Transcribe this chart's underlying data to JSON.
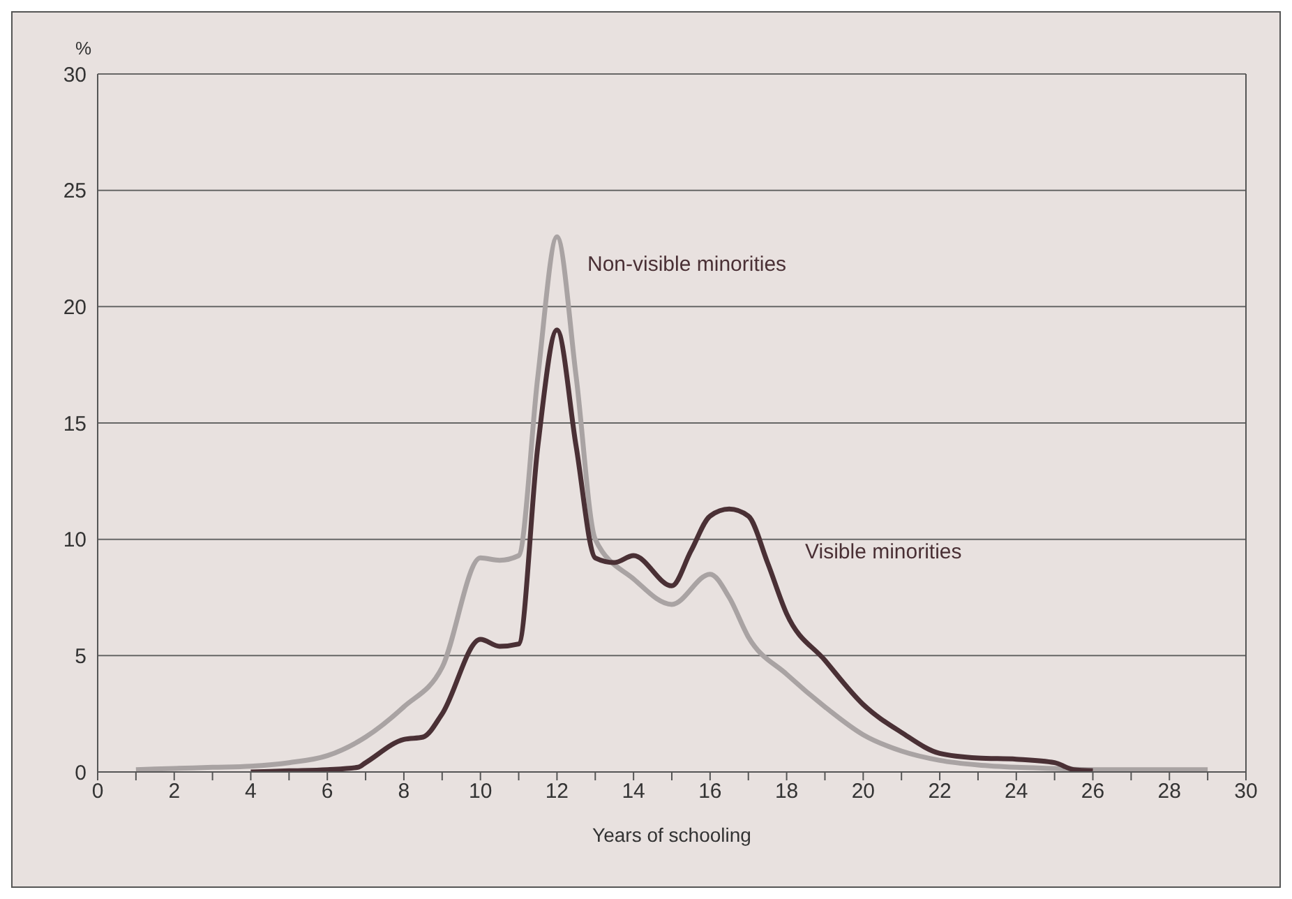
{
  "chart_data": {
    "type": "line",
    "xlabel": "Years of schooling",
    "ylabel": "%",
    "xlim": [
      0,
      30
    ],
    "xticks": [
      0,
      {
        "value": 1,
        "label": null
      },
      2,
      {
        "value": 3,
        "label": null
      },
      4,
      {
        "value": 5,
        "label": null
      },
      6,
      {
        "value": 7,
        "label": null
      },
      8,
      {
        "value": 9,
        "label": null
      },
      10,
      {
        "value": 11,
        "label": null
      },
      12,
      {
        "value": 13,
        "label": null
      },
      14,
      {
        "value": 15,
        "label": null
      },
      16,
      {
        "value": 17,
        "label": null
      },
      18,
      {
        "value": 19,
        "label": null
      },
      20,
      {
        "value": 21,
        "label": null
      },
      22,
      {
        "value": 23,
        "label": null
      },
      24,
      {
        "value": 25,
        "label": null
      },
      26,
      {
        "value": 27,
        "label": null
      },
      28,
      {
        "value": 29,
        "label": null
      },
      30
    ],
    "ylim": [
      0,
      30
    ],
    "yticks": [
      0,
      5,
      10,
      15,
      20,
      25,
      30
    ],
    "grid": "y",
    "marker": "none",
    "line_style": "solid",
    "series": [
      {
        "name": "Non-visible minorities",
        "color": "#a9a3a3",
        "x": [
          1,
          2,
          3,
          4,
          5,
          6,
          7,
          8,
          9,
          10,
          10.5,
          11,
          11.5,
          12,
          12.5,
          13,
          14,
          15,
          16,
          16.5,
          17,
          18,
          19,
          20,
          21,
          22,
          23,
          24,
          25,
          26,
          27,
          28,
          29
        ],
        "values": [
          0.1,
          0.15,
          0.2,
          0.25,
          0.4,
          0.7,
          1.5,
          2.8,
          4.5,
          9.2,
          9.1,
          9.3,
          17,
          23,
          17,
          10,
          8.3,
          7.2,
          8.5,
          7.5,
          5.8,
          4.2,
          2.8,
          1.6,
          0.9,
          0.5,
          0.3,
          0.2,
          0.15,
          0.1,
          0.1,
          0.1,
          0.1
        ]
      },
      {
        "name": "Visible minorities",
        "color": "#4a3035",
        "x": [
          4,
          5,
          6,
          6.8,
          7,
          8,
          8.5,
          9,
          10,
          10.5,
          11,
          11.5,
          12,
          12.5,
          13,
          13.5,
          14,
          15,
          15.5,
          16,
          16.5,
          17,
          17.5,
          18,
          19,
          20,
          21,
          22,
          23,
          24,
          25,
          25.5,
          26
        ],
        "values": [
          0,
          0.05,
          0.1,
          0.2,
          0.4,
          1.4,
          1.5,
          2.5,
          5.7,
          5.4,
          5.5,
          14,
          19,
          14,
          9.2,
          9,
          9.3,
          8,
          9.5,
          11,
          11.3,
          11,
          9,
          6.8,
          4.8,
          2.9,
          1.7,
          0.8,
          0.6,
          0.55,
          0.4,
          0.1,
          0.05
        ]
      }
    ]
  }
}
